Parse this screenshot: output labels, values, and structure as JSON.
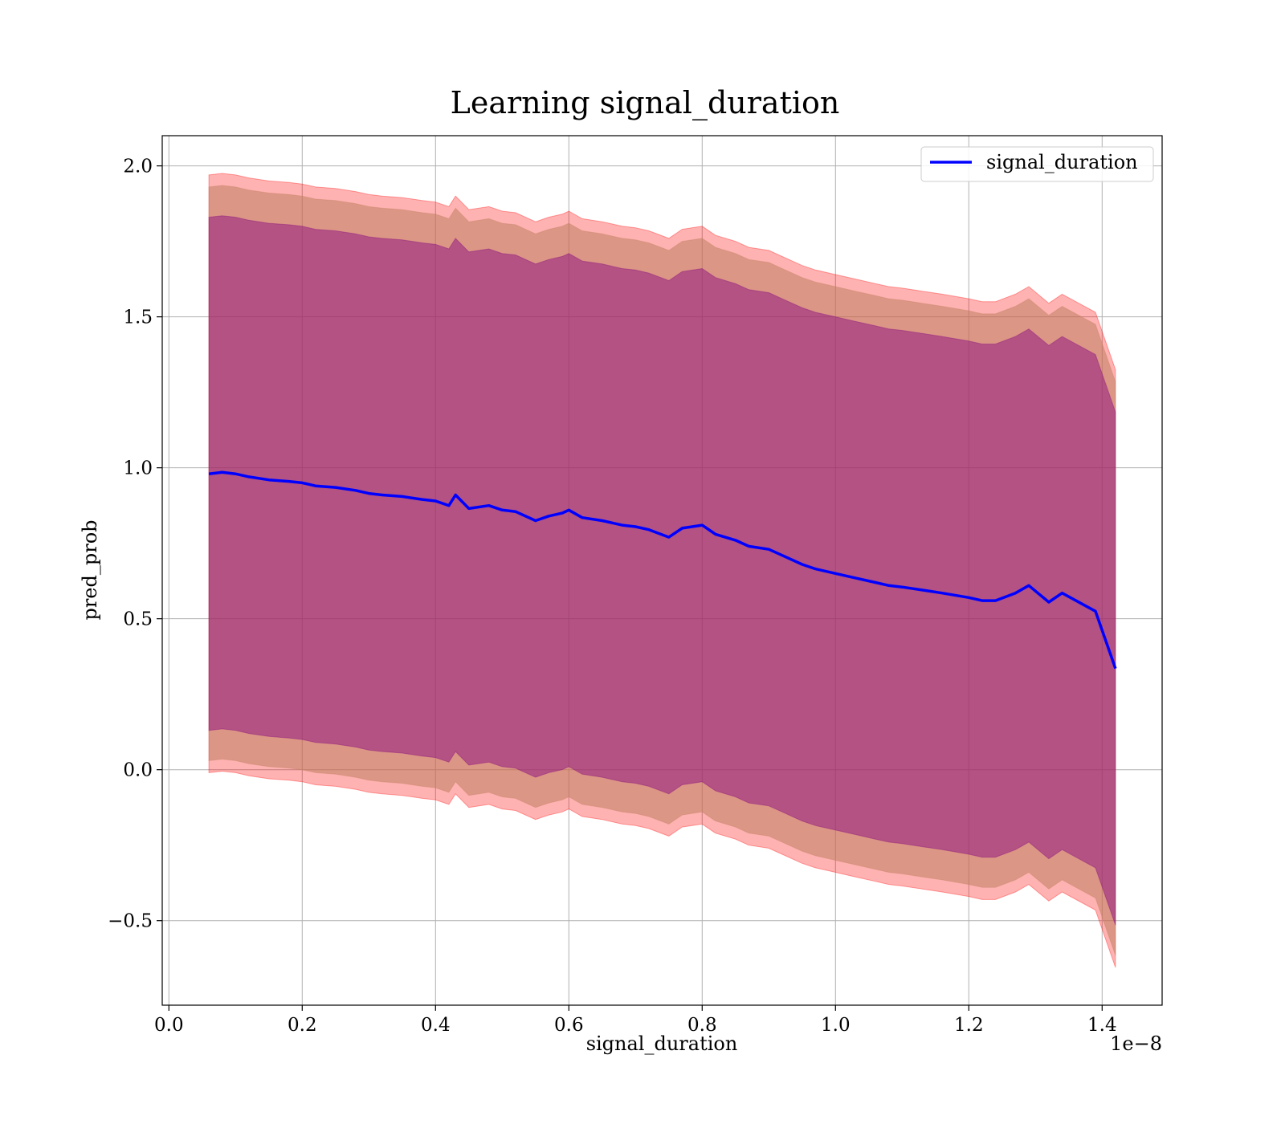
{
  "chart_data": {
    "type": "line",
    "title": "Learning signal_duration",
    "xlabel": "signal_duration",
    "ylabel": "pred_prob",
    "x_offset_label": "1e−8",
    "x_scale": 1e-08,
    "xlim": [
      -0.01,
      1.49
    ],
    "ylim": [
      -0.78,
      2.1
    ],
    "grid": true,
    "legend": "top-right",
    "x_ticks": [
      0.0,
      0.2,
      0.4,
      0.6,
      0.8,
      1.0,
      1.2,
      1.4
    ],
    "x_tick_labels": [
      "0.0",
      "0.2",
      "0.4",
      "0.6",
      "0.8",
      "1.0",
      "1.2",
      "1.4"
    ],
    "y_ticks": [
      -0.5,
      0.0,
      0.5,
      1.0,
      1.5,
      2.0
    ],
    "y_tick_labels": [
      "−0.5",
      "0.0",
      "0.5",
      "1.0",
      "1.5",
      "2.0"
    ],
    "colors": {
      "line": "#0000ff",
      "band_outer": "#ff0000",
      "band_middle": "#bf8060",
      "band_inner": "#800080"
    },
    "series": [
      {
        "name": "signal_duration",
        "x": [
          0.06,
          0.08,
          0.1,
          0.12,
          0.15,
          0.18,
          0.2,
          0.22,
          0.25,
          0.28,
          0.3,
          0.32,
          0.35,
          0.38,
          0.4,
          0.42,
          0.43,
          0.45,
          0.48,
          0.5,
          0.52,
          0.55,
          0.57,
          0.59,
          0.6,
          0.62,
          0.65,
          0.68,
          0.7,
          0.72,
          0.75,
          0.77,
          0.8,
          0.82,
          0.85,
          0.87,
          0.9,
          0.92,
          0.95,
          0.97,
          1.0,
          1.03,
          1.06,
          1.08,
          1.1,
          1.13,
          1.16,
          1.2,
          1.22,
          1.24,
          1.27,
          1.29,
          1.32,
          1.34,
          1.39,
          1.42
        ],
        "y": [
          0.98,
          0.985,
          0.98,
          0.97,
          0.96,
          0.955,
          0.95,
          0.94,
          0.935,
          0.925,
          0.915,
          0.91,
          0.905,
          0.895,
          0.89,
          0.875,
          0.91,
          0.865,
          0.875,
          0.86,
          0.855,
          0.825,
          0.84,
          0.85,
          0.86,
          0.835,
          0.825,
          0.81,
          0.805,
          0.795,
          0.77,
          0.8,
          0.81,
          0.78,
          0.76,
          0.74,
          0.73,
          0.71,
          0.68,
          0.665,
          0.65,
          0.635,
          0.62,
          0.61,
          0.605,
          0.595,
          0.585,
          0.57,
          0.56,
          0.56,
          0.585,
          0.61,
          0.555,
          0.585,
          0.525,
          0.335
        ]
      }
    ],
    "bands": [
      {
        "name": "outer",
        "width": 0.99
      },
      {
        "name": "middle",
        "width": 0.95
      },
      {
        "name": "inner",
        "width": 0.85
      }
    ]
  }
}
